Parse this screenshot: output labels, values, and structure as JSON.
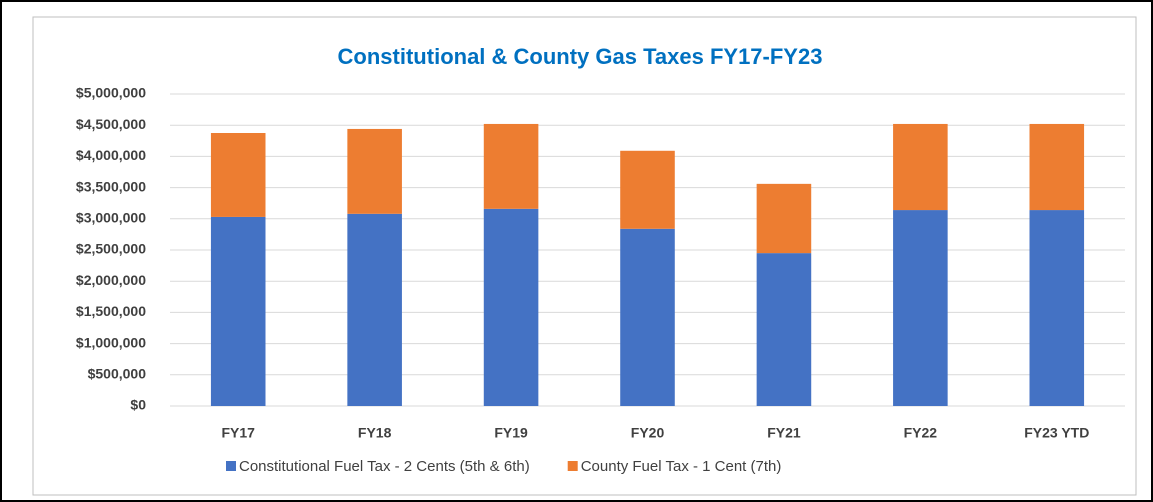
{
  "chart_data": {
    "type": "stacked_bar",
    "title": "Constitutional & County Gas Taxes FY17-FY23",
    "categories": [
      "FY17",
      "FY18",
      "FY19",
      "FY20",
      "FY21",
      "FY22",
      "FY23 YTD"
    ],
    "series": [
      {
        "name": "Constitutional Fuel Tax - 2 Cents (5th & 6th)",
        "color": "#4472c4",
        "values": [
          3030000,
          3080000,
          3160000,
          2840000,
          2450000,
          3140000,
          3140000
        ]
      },
      {
        "name": "County Fuel Tax - 1 Cent (7th)",
        "color": "#ed7d31",
        "values": [
          1345000,
          1360000,
          1360000,
          1250000,
          1110000,
          1380000,
          1380000
        ]
      }
    ],
    "ylim": [
      0,
      5000000
    ],
    "yticks": [
      {
        "value": 0,
        "label": "$0"
      },
      {
        "value": 500000,
        "label": "$500,000"
      },
      {
        "value": 1000000,
        "label": "$1,000,000"
      },
      {
        "value": 1500000,
        "label": "$1,500,000"
      },
      {
        "value": 2000000,
        "label": "$2,000,000"
      },
      {
        "value": 2500000,
        "label": "$2,500,000"
      },
      {
        "value": 3000000,
        "label": "$3,000,000"
      },
      {
        "value": 3500000,
        "label": "$3,500,000"
      },
      {
        "value": 4000000,
        "label": "$4,000,000"
      },
      {
        "value": 4500000,
        "label": "$4,500,000"
      },
      {
        "value": 5000000,
        "label": "$5,000,000"
      }
    ],
    "grid": true,
    "legend": "bottom"
  }
}
